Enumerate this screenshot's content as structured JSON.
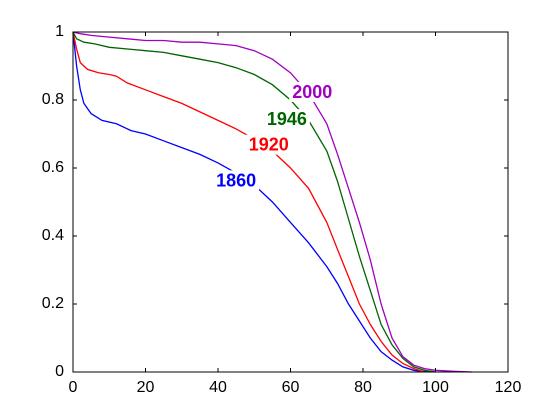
{
  "chart_data": {
    "type": "line",
    "xlim": [
      0,
      120
    ],
    "ylim": [
      0,
      1
    ],
    "xticks": [
      0,
      20,
      40,
      60,
      80,
      100,
      120
    ],
    "xtick_labels": [
      "0",
      "20",
      "40",
      "60",
      "80",
      "100",
      "120"
    ],
    "yticks": [
      0,
      0.2,
      0.4,
      0.6,
      0.8,
      1
    ],
    "ytick_labels": [
      "0",
      "0.2",
      "0.4",
      "0.6",
      "0.8",
      "1"
    ],
    "grid": false,
    "series": [
      {
        "name": "1860",
        "color": "#0000ff",
        "points": [
          [
            0,
            1.0
          ],
          [
            1,
            0.9
          ],
          [
            2,
            0.83
          ],
          [
            3,
            0.79
          ],
          [
            5,
            0.76
          ],
          [
            8,
            0.74
          ],
          [
            12,
            0.73
          ],
          [
            16,
            0.71
          ],
          [
            20,
            0.7
          ],
          [
            25,
            0.68
          ],
          [
            30,
            0.66
          ],
          [
            35,
            0.64
          ],
          [
            40,
            0.615
          ],
          [
            45,
            0.585
          ],
          [
            50,
            0.55
          ],
          [
            55,
            0.5
          ],
          [
            60,
            0.44
          ],
          [
            65,
            0.38
          ],
          [
            70,
            0.31
          ],
          [
            73,
            0.26
          ],
          [
            76,
            0.2
          ],
          [
            79,
            0.15
          ],
          [
            82,
            0.1
          ],
          [
            85,
            0.06
          ],
          [
            88,
            0.035
          ],
          [
            91,
            0.015
          ],
          [
            94,
            0.005
          ],
          [
            98,
            0.0
          ]
        ]
      },
      {
        "name": "1920",
        "color": "#ff0000",
        "points": [
          [
            0,
            1.0
          ],
          [
            1,
            0.95
          ],
          [
            2,
            0.91
          ],
          [
            4,
            0.89
          ],
          [
            7,
            0.88
          ],
          [
            10,
            0.875
          ],
          [
            12,
            0.87
          ],
          [
            15,
            0.85
          ],
          [
            20,
            0.83
          ],
          [
            25,
            0.81
          ],
          [
            30,
            0.79
          ],
          [
            35,
            0.765
          ],
          [
            40,
            0.74
          ],
          [
            45,
            0.715
          ],
          [
            50,
            0.685
          ],
          [
            55,
            0.65
          ],
          [
            60,
            0.6
          ],
          [
            65,
            0.54
          ],
          [
            70,
            0.44
          ],
          [
            73,
            0.36
          ],
          [
            76,
            0.28
          ],
          [
            79,
            0.2
          ],
          [
            82,
            0.14
          ],
          [
            85,
            0.09
          ],
          [
            88,
            0.05
          ],
          [
            91,
            0.025
          ],
          [
            94,
            0.01
          ],
          [
            97,
            0.0
          ]
        ]
      },
      {
        "name": "1946",
        "color": "#006400",
        "points": [
          [
            0,
            1.0
          ],
          [
            1,
            0.98
          ],
          [
            3,
            0.97
          ],
          [
            6,
            0.965
          ],
          [
            10,
            0.955
          ],
          [
            15,
            0.95
          ],
          [
            20,
            0.945
          ],
          [
            25,
            0.94
          ],
          [
            30,
            0.93
          ],
          [
            35,
            0.92
          ],
          [
            40,
            0.91
          ],
          [
            45,
            0.895
          ],
          [
            50,
            0.875
          ],
          [
            55,
            0.845
          ],
          [
            60,
            0.8
          ],
          [
            65,
            0.74
          ],
          [
            70,
            0.65
          ],
          [
            73,
            0.56
          ],
          [
            76,
            0.45
          ],
          [
            79,
            0.34
          ],
          [
            82,
            0.24
          ],
          [
            85,
            0.14
          ],
          [
            88,
            0.08
          ],
          [
            91,
            0.04
          ],
          [
            94,
            0.015
          ],
          [
            97,
            0.005
          ],
          [
            100,
            0.0
          ]
        ]
      },
      {
        "name": "2000",
        "color": "#a000c0",
        "points": [
          [
            0,
            1.0
          ],
          [
            2,
            0.995
          ],
          [
            5,
            0.99
          ],
          [
            10,
            0.985
          ],
          [
            15,
            0.98
          ],
          [
            20,
            0.975
          ],
          [
            25,
            0.975
          ],
          [
            30,
            0.97
          ],
          [
            35,
            0.97
          ],
          [
            40,
            0.965
          ],
          [
            45,
            0.96
          ],
          [
            50,
            0.945
          ],
          [
            55,
            0.92
          ],
          [
            60,
            0.88
          ],
          [
            65,
            0.82
          ],
          [
            70,
            0.73
          ],
          [
            73,
            0.64
          ],
          [
            76,
            0.54
          ],
          [
            79,
            0.44
          ],
          [
            82,
            0.33
          ],
          [
            85,
            0.2
          ],
          [
            88,
            0.1
          ],
          [
            91,
            0.045
          ],
          [
            94,
            0.02
          ],
          [
            97,
            0.01
          ],
          [
            100,
            0.005
          ],
          [
            105,
            0.002
          ],
          [
            110,
            0.0
          ]
        ]
      }
    ],
    "annotations": [
      {
        "text": "1860",
        "color": "#0000ff",
        "x": 45,
        "y": 0.56
      },
      {
        "text": "1920",
        "color": "#ff0000",
        "x": 54,
        "y": 0.665
      },
      {
        "text": "1946",
        "color": "#006400",
        "x": 59,
        "y": 0.74
      },
      {
        "text": "2000",
        "color": "#a000c0",
        "x": 66,
        "y": 0.82
      }
    ]
  }
}
